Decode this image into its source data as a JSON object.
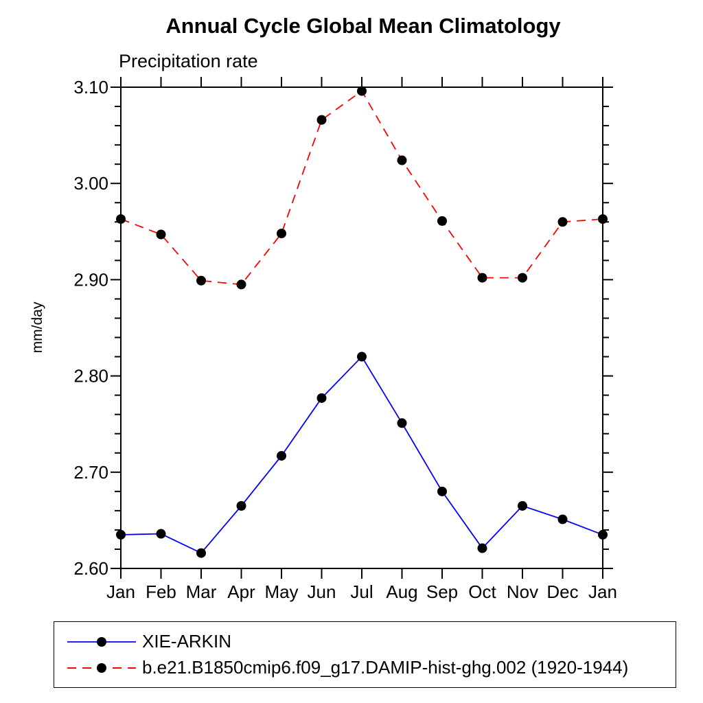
{
  "title": "Annual Cycle Global Mean Climatology",
  "subtitle": "Precipitation rate",
  "chart_data": {
    "type": "line",
    "categories": [
      "Jan",
      "Feb",
      "Mar",
      "Apr",
      "May",
      "Jun",
      "Jul",
      "Aug",
      "Sep",
      "Oct",
      "Nov",
      "Dec",
      "Jan"
    ],
    "xlabel": "",
    "ylabel": "mm/day",
    "ylim": [
      2.6,
      3.1
    ],
    "ytick_major": 0.1,
    "ytick_minor": 0.02,
    "ytick_labels": [
      "2.60",
      "2.70",
      "2.80",
      "2.90",
      "3.00",
      "3.10"
    ],
    "grid": false,
    "legend_position": "bottom box",
    "marker": "filled-circle",
    "marker_color": "#000000",
    "series": [
      {
        "name": "XIE-ARKIN",
        "color": "#0000ff",
        "line_style": "solid",
        "values": [
          2.635,
          2.636,
          2.616,
          2.665,
          2.717,
          2.777,
          2.82,
          2.751,
          2.68,
          2.621,
          2.665,
          2.651,
          2.635
        ]
      },
      {
        "name": "b.e21.B1850cmip6.f09_g17.DAMIP-hist-ghg.002 (1920-1944)",
        "color": "#ff0000",
        "line_style": "dashed",
        "values": [
          2.963,
          2.947,
          2.899,
          2.895,
          2.948,
          3.066,
          3.096,
          3.024,
          2.961,
          2.902,
          2.902,
          2.96,
          2.963
        ]
      }
    ]
  }
}
